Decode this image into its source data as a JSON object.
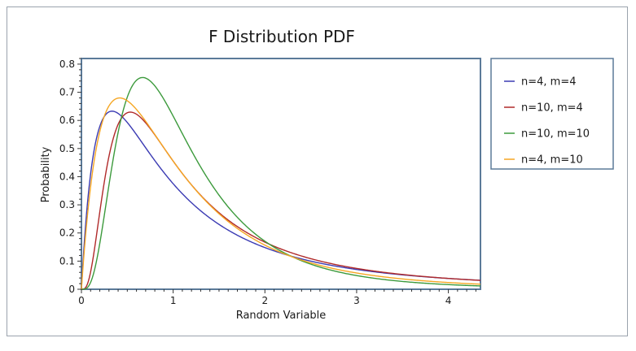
{
  "chart_data": {
    "type": "line",
    "title": "F Distribution PDF",
    "xlabel": "Random Variable",
    "ylabel": "Probability",
    "xlim": [
      0,
      4.35
    ],
    "ylim": [
      0,
      0.82
    ],
    "x_ticks": [
      0,
      1,
      2,
      3,
      4
    ],
    "y_ticks": [
      0,
      0.1,
      0.2,
      0.3,
      0.4,
      0.5,
      0.6,
      0.7,
      0.8
    ],
    "grid": false,
    "legend_position": "right",
    "series": [
      {
        "name": "n=4, m=4",
        "color": "#3b3bb3",
        "n": 4,
        "m": 4
      },
      {
        "name": "n=10, m=4",
        "color": "#b02a2a",
        "n": 10,
        "m": 4
      },
      {
        "name": "n=10, m=10",
        "color": "#3c9a3c",
        "n": 10,
        "m": 10
      },
      {
        "name": "n=4, m=10",
        "color": "#f5a623",
        "n": 4,
        "m": 10
      }
    ]
  }
}
